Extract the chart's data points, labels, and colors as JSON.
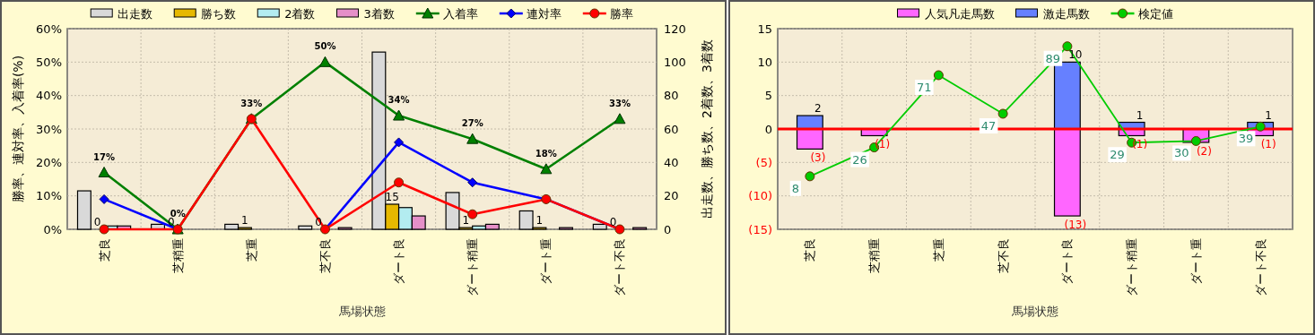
{
  "chart_data": [
    {
      "type": "bar",
      "xlabel": "馬場状態",
      "ylabel": "勝率、連対率、入着率(%)",
      "y2label": "出走数、勝ち数、2着数、3着数",
      "categories": [
        "芝良",
        "芝稍重",
        "芝重",
        "芝不良",
        "ダート良",
        "ダート稍重",
        "ダート重",
        "ダート不良"
      ],
      "series": [
        {
          "name": "出走数",
          "axis": "y2",
          "color": "#d9d9d9",
          "values": [
            23,
            3,
            3,
            2,
            106,
            22,
            11,
            3
          ]
        },
        {
          "name": "勝ち数",
          "axis": "y2",
          "color": "#e6b800",
          "values": [
            0,
            0,
            1,
            0,
            15,
            1,
            1,
            0
          ],
          "value_labels": [
            "0",
            "0",
            "1",
            "0",
            "15",
            "1",
            "1",
            "0"
          ]
        },
        {
          "name": "2着数",
          "axis": "y2",
          "color": "#b3ecf0",
          "values": [
            2,
            0,
            0,
            0,
            13,
            2,
            0,
            0
          ]
        },
        {
          "name": "3着数",
          "axis": "y2",
          "color": "#e58fc8",
          "values": [
            2,
            0,
            0,
            1,
            8,
            3,
            1,
            1
          ]
        },
        {
          "name": "入着率",
          "type": "line",
          "color": "#008000",
          "marker": "triangle",
          "values": [
            17,
            0,
            33,
            50,
            34,
            27,
            18,
            33
          ],
          "value_labels": [
            "17%",
            "0%",
            "33%",
            "50%",
            "34%",
            "27%",
            "18%",
            "33%"
          ]
        },
        {
          "name": "連対率",
          "type": "line",
          "color": "#0000ff",
          "marker": "diamond",
          "values": [
            9,
            0,
            null,
            0,
            26,
            14,
            9,
            0
          ]
        },
        {
          "name": "勝率",
          "type": "line",
          "color": "#ff0000",
          "marker": "circle",
          "values": [
            0,
            0,
            33,
            0,
            14,
            4.5,
            9,
            0
          ]
        }
      ],
      "ylim": [
        0,
        60
      ],
      "yticks": [
        {
          "value": 0,
          "label": "0%"
        },
        {
          "value": 10,
          "label": "10%"
        },
        {
          "value": 20,
          "label": "20%"
        },
        {
          "value": 30,
          "label": "30%"
        },
        {
          "value": 40,
          "label": "40%"
        },
        {
          "value": 50,
          "label": "50%"
        },
        {
          "value": 60,
          "label": "60%"
        }
      ],
      "y2lim": [
        0,
        120
      ],
      "y2ticks": [
        0,
        20,
        40,
        60,
        80,
        100,
        120
      ],
      "grid": true,
      "legend": "top"
    },
    {
      "type": "bar",
      "xlabel": "馬場状態",
      "stacked": true,
      "categories": [
        "芝良",
        "芝稍重",
        "芝重",
        "芝不良",
        "ダート良",
        "ダート稍重",
        "ダート重",
        "ダート不良"
      ],
      "series": [
        {
          "name": "人気凡走馬数",
          "color": "#ff66ff",
          "values": [
            -3,
            -1,
            0,
            0,
            -13,
            -1,
            -2,
            -1
          ],
          "value_labels": [
            "(3)",
            "(1)",
            null,
            null,
            "(13)",
            "(1)",
            "(2)",
            "(1)"
          ]
        },
        {
          "name": "激走馬数",
          "color": "#6680ff",
          "values": [
            2,
            0,
            0,
            0,
            10,
            1,
            0,
            1
          ],
          "value_labels": [
            "2",
            null,
            null,
            null,
            "10",
            "1",
            null,
            "1"
          ]
        },
        {
          "name": "検定値",
          "type": "line",
          "axis": "y2",
          "color": "#00cc00",
          "marker": "circle",
          "values": [
            8,
            26,
            71,
            47,
            89,
            29,
            30,
            39
          ],
          "data_labels": true
        }
      ],
      "ylim": [
        -15,
        15
      ],
      "yticks": [
        {
          "value": -15,
          "label": "(15)"
        },
        {
          "value": -10,
          "label": "(10)"
        },
        {
          "value": -5,
          "label": "(5)"
        },
        0,
        5,
        10,
        15
      ],
      "y2lim": [
        -25,
        100
      ],
      "tick_labels": "xy",
      "ref_lines": [
        {
          "axis": "y",
          "value": 0,
          "color": "#ff0000"
        }
      ],
      "grid": true,
      "legend": "top"
    }
  ]
}
